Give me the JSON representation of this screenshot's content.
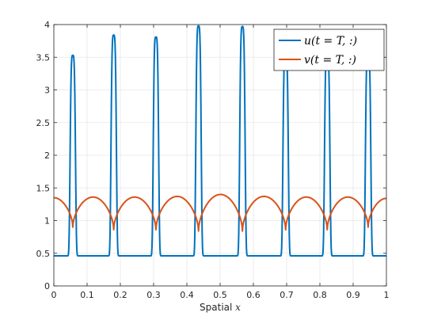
{
  "chart_data": {
    "type": "line",
    "title": "",
    "xlabel": "Spatial x",
    "xlabel_prefix": "Spatial ",
    "xlabel_var": "x",
    "ylabel": "",
    "xlim": [
      0,
      1
    ],
    "ylim": [
      0,
      4
    ],
    "xticks": [
      "0",
      "0.1",
      "0.2",
      "0.3",
      "0.4",
      "0.5",
      "0.6",
      "0.7",
      "0.8",
      "0.9",
      "1"
    ],
    "yticks": [
      "0",
      "0.5",
      "1",
      "1.5",
      "2",
      "2.5",
      "3",
      "3.5",
      "4"
    ],
    "grid": true,
    "legend_position": "top-right",
    "series": [
      {
        "name": "u(t = T, :)",
        "color": "#0072BD",
        "baseline": 0.46,
        "peaks": [
          {
            "x": 0.057,
            "y": 3.53
          },
          {
            "x": 0.18,
            "y": 3.84
          },
          {
            "x": 0.307,
            "y": 3.81
          },
          {
            "x": 0.435,
            "y": 3.98
          },
          {
            "x": 0.567,
            "y": 3.97
          },
          {
            "x": 0.697,
            "y": 3.6
          },
          {
            "x": 0.822,
            "y": 3.6
          },
          {
            "x": 0.945,
            "y": 3.6
          }
        ]
      },
      {
        "name": "v(t = T, :)",
        "color": "#D95319",
        "minima": [
          {
            "x": 0.057,
            "y": 0.9
          },
          {
            "x": 0.18,
            "y": 0.86
          },
          {
            "x": 0.307,
            "y": 0.86
          },
          {
            "x": 0.435,
            "y": 0.84
          },
          {
            "x": 0.567,
            "y": 0.84
          },
          {
            "x": 0.697,
            "y": 0.86
          },
          {
            "x": 0.822,
            "y": 0.86
          },
          {
            "x": 0.945,
            "y": 0.9
          }
        ],
        "maxima": [
          {
            "x": 0.0,
            "y": 1.35
          },
          {
            "x": 0.118,
            "y": 1.36
          },
          {
            "x": 0.243,
            "y": 1.36
          },
          {
            "x": 0.371,
            "y": 1.37
          },
          {
            "x": 0.501,
            "y": 1.4
          },
          {
            "x": 0.632,
            "y": 1.37
          },
          {
            "x": 0.759,
            "y": 1.36
          },
          {
            "x": 0.884,
            "y": 1.36
          },
          {
            "x": 1.0,
            "y": 1.34
          }
        ]
      }
    ]
  }
}
